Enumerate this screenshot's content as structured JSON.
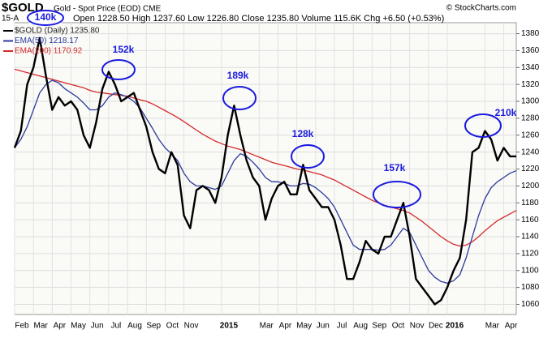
{
  "chart_data": {
    "type": "line",
    "title": "$GOLD",
    "subtitle": "Gold - Spot Price (EOD) CME",
    "credit": "© StockCharts.com",
    "date": "15-A",
    "info": "Open 1228.50  High 1237.60  Low 1226.80  Close 1235.80  Volume 115.6K  Chg +6.50 (+0.53%)",
    "categories": [
      "Feb",
      null,
      null,
      "Mar",
      null,
      null,
      "Apr",
      null,
      null,
      "May",
      null,
      null,
      "Jun",
      null,
      null,
      "Jul",
      null,
      null,
      "Aug",
      null,
      null,
      "Sep",
      null,
      null,
      "Oct",
      null,
      null,
      "Nov",
      null,
      null,
      null,
      null,
      null,
      "2015",
      null,
      null,
      null,
      null,
      null,
      "Mar",
      null,
      null,
      "Apr",
      null,
      null,
      "May",
      null,
      null,
      "Jun",
      null,
      null,
      "Jul",
      null,
      null,
      "Aug",
      null,
      null,
      "Sep",
      null,
      null,
      "Oct",
      null,
      null,
      "Nov",
      null,
      null,
      "Dec",
      null,
      null,
      "2016",
      null,
      null,
      null,
      null,
      null,
      "Mar",
      null,
      null,
      "Apr",
      null,
      null
    ],
    "series": [
      {
        "name": "$GOLD (Daily) 1235.80",
        "color": "#000000",
        "values": [
          1245,
          1265,
          1320,
          1340,
          1375,
          1330,
          1290,
          1305,
          1295,
          1300,
          1290,
          1260,
          1245,
          1275,
          1315,
          1335,
          1320,
          1300,
          1305,
          1310,
          1290,
          1270,
          1240,
          1220,
          1215,
          1240,
          1225,
          1165,
          1150,
          1195,
          1200,
          1195,
          1180,
          1210,
          1260,
          1295,
          1260,
          1230,
          1210,
          1200,
          1160,
          1185,
          1200,
          1205,
          1190,
          1190,
          1225,
          1195,
          1185,
          1175,
          1175,
          1160,
          1130,
          1090,
          1090,
          1110,
          1135,
          1125,
          1120,
          1140,
          1140,
          1160,
          1180,
          1140,
          1090,
          1080,
          1070,
          1060,
          1065,
          1080,
          1100,
          1115,
          1160,
          1240,
          1245,
          1265,
          1255,
          1230,
          1245,
          1235,
          1235
        ]
      },
      {
        "name": "EMA(50) 1218.17",
        "color": "#2b3a9c",
        "values": [
          1245,
          1255,
          1270,
          1290,
          1310,
          1320,
          1325,
          1322,
          1315,
          1310,
          1305,
          1298,
          1290,
          1290,
          1295,
          1305,
          1310,
          1308,
          1305,
          1300,
          1292,
          1280,
          1268,
          1255,
          1245,
          1238,
          1230,
          1215,
          1205,
          1200,
          1200,
          1198,
          1196,
          1200,
          1215,
          1230,
          1238,
          1235,
          1228,
          1220,
          1210,
          1205,
          1205,
          1203,
          1200,
          1200,
          1203,
          1202,
          1198,
          1192,
          1185,
          1175,
          1160,
          1145,
          1130,
          1125,
          1125,
          1125,
          1124,
          1125,
          1130,
          1140,
          1150,
          1145,
          1130,
          1115,
          1100,
          1092,
          1087,
          1085,
          1088,
          1095,
          1115,
          1140,
          1165,
          1185,
          1198,
          1205,
          1210,
          1215,
          1218
        ]
      },
      {
        "name": "EMA(200) 1170.92",
        "color": "#d42a2a",
        "values": [
          1338,
          1336,
          1334,
          1332,
          1330,
          1328,
          1326,
          1324,
          1322,
          1320,
          1318,
          1316,
          1313,
          1311,
          1310,
          1309,
          1308,
          1307,
          1306,
          1304,
          1302,
          1300,
          1297,
          1293,
          1289,
          1285,
          1281,
          1276,
          1271,
          1266,
          1261,
          1257,
          1253,
          1250,
          1247,
          1245,
          1243,
          1240,
          1237,
          1234,
          1231,
          1228,
          1226,
          1224,
          1222,
          1220,
          1219,
          1217,
          1215,
          1213,
          1210,
          1207,
          1203,
          1199,
          1195,
          1191,
          1187,
          1183,
          1180,
          1177,
          1175,
          1173,
          1171,
          1168,
          1163,
          1158,
          1152,
          1146,
          1140,
          1135,
          1131,
          1129,
          1130,
          1134,
          1140,
          1147,
          1153,
          1159,
          1163,
          1167,
          1171
        ]
      }
    ],
    "annotations": [
      "140k",
      "152k",
      "189k",
      "128k",
      "157k",
      "210k"
    ],
    "annotation_color": "#1a1adf",
    "ylim": [
      1048,
      1393
    ],
    "yticks": [
      1060,
      1080,
      1100,
      1120,
      1140,
      1160,
      1180,
      1200,
      1220,
      1240,
      1260,
      1280,
      1300,
      1320,
      1340,
      1360,
      1380
    ],
    "grid": true
  }
}
